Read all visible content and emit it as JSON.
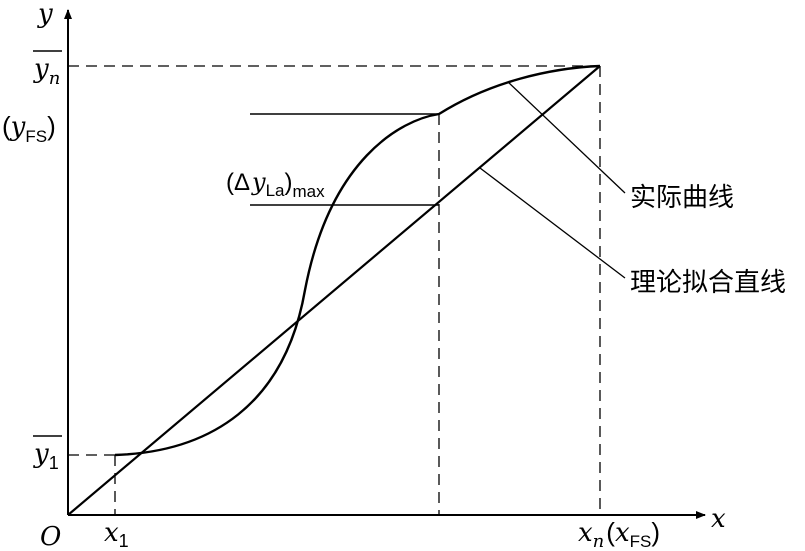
{
  "axes": {
    "x_label": "x",
    "y_label": "y",
    "origin_label": "O"
  },
  "y_ticks": {
    "yn_base": "y",
    "yn_sub": "n",
    "yfs_open": "(",
    "yfs_base": "y",
    "yfs_sub": "FS",
    "yfs_close": ")",
    "y1_base": "y",
    "y1_sub": "1"
  },
  "x_ticks": {
    "x1_base": "x",
    "x1_sub": "1",
    "xn_base": "x",
    "xn_sub": "n",
    "xfs_open": "(",
    "xfs_base": "x",
    "xfs_sub": "FS",
    "xfs_close": ")"
  },
  "annotation": {
    "open": "(Δ",
    "base": "y",
    "sub": "La",
    "close": ")",
    "max_sub": "max"
  },
  "callouts": {
    "actual_curve": "实际曲线",
    "fitted_line": "理论拟合直线"
  }
}
